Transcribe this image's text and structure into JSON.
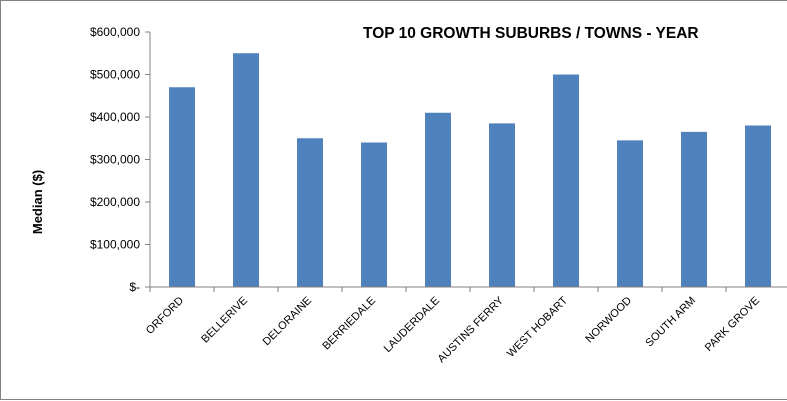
{
  "chart_data": {
    "type": "bar",
    "title": "TOP 10 GROWTH SUBURBS / TOWNS - YEAR",
    "xlabel": "",
    "ylabel": "Median ($)",
    "categories": [
      "ORFORD",
      "BELLERIVE",
      "DELORAINE",
      "BERRIEDALE",
      "LAUDERDALE",
      "AUSTINS FERRY",
      "WEST HOBART",
      "NORWOOD",
      "SOUTH ARM",
      "PARK GROVE"
    ],
    "values": [
      470000,
      550000,
      350000,
      340000,
      410000,
      385000,
      500000,
      345000,
      365000,
      380000
    ],
    "ylim": [
      0,
      600000
    ],
    "yticks": [
      0,
      100000,
      200000,
      300000,
      400000,
      500000,
      600000
    ],
    "ytick_labels": [
      "$-",
      "$100,000",
      "$200,000",
      "$300,000",
      "$400,000",
      "$500,000",
      "$600,000"
    ],
    "grid": false,
    "legend": "none",
    "bar_color": "#4F81BD"
  }
}
